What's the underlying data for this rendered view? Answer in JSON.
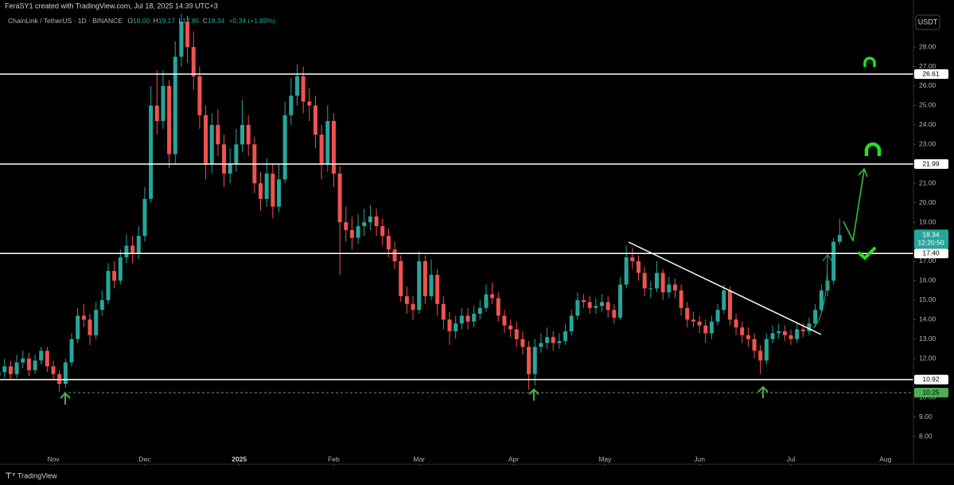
{
  "header": "FeraSY1 created with TradingView.com, Jul 18, 2025 14:39 UTC+3",
  "footer": "TradingView",
  "chart_data": {
    "type": "candlestick",
    "title": "ChainLink / TetherUS · 1D · BINANCE",
    "ohlc_legend": [
      {
        "key": "O",
        "value": "18.00"
      },
      {
        "key": "H",
        "value": "19.17"
      },
      {
        "key": "L",
        "value": "17.85"
      },
      {
        "key": "C",
        "value": "18.34"
      }
    ],
    "change": "+0.34 (+1.89%)",
    "currency": "USDT",
    "up_color": "#26a69a",
    "down_color": "#ef5350",
    "grid": false,
    "xlim": [
      -17.5,
      282.2
    ],
    "xticks": [
      {
        "value": 0,
        "label": "Nov"
      },
      {
        "value": 30,
        "label": "Dec"
      },
      {
        "value": 61,
        "label": "2025"
      },
      {
        "value": 92,
        "label": "Feb"
      },
      {
        "value": 120,
        "label": "Mar"
      },
      {
        "value": 151,
        "label": "Apr"
      },
      {
        "value": 181,
        "label": "May"
      },
      {
        "value": 212,
        "label": "Jun"
      },
      {
        "value": 242,
        "label": "Jul"
      },
      {
        "value": 273,
        "label": "Aug"
      }
    ],
    "ylim": [
      6.61,
      29.68
    ],
    "yticks": [
      {
        "value": 8,
        "label": "8.00"
      },
      {
        "value": 9,
        "label": "9.00"
      },
      {
        "value": 10,
        "label": "10.00"
      },
      {
        "value": 12,
        "label": "12.00"
      },
      {
        "value": 13,
        "label": "13.00"
      },
      {
        "value": 14,
        "label": "14.00"
      },
      {
        "value": 15,
        "label": "15.00"
      },
      {
        "value": 16,
        "label": "16.00"
      },
      {
        "value": 17,
        "label": "17.00"
      },
      {
        "value": 19,
        "label": "19.00"
      },
      {
        "value": 20,
        "label": "20.00"
      },
      {
        "value": 21,
        "label": "21.00"
      },
      {
        "value": 23,
        "label": "23.00"
      },
      {
        "value": 24,
        "label": "24.00"
      },
      {
        "value": 25,
        "label": "25.00"
      },
      {
        "value": 26,
        "label": "26.00"
      },
      {
        "value": 27,
        "label": "27.00"
      },
      {
        "value": 28,
        "label": "28.00"
      }
    ],
    "levels": [
      26.61,
      21.99,
      {
        "value": 17.4,
        "label": "17.40"
      },
      10.92
    ],
    "support_level": 10.25,
    "last_price": 18.34,
    "countdown": "12:20:50",
    "x": [
      -18,
      -16,
      -14,
      -12,
      -10,
      -8,
      -6,
      -4,
      -2,
      0,
      2,
      4,
      6,
      8,
      10,
      12,
      14,
      16,
      18,
      20,
      22,
      24,
      26,
      28,
      30,
      32,
      34,
      36,
      38,
      40,
      42,
      44,
      46,
      48,
      50,
      52,
      54,
      56,
      58,
      60,
      62,
      64,
      66,
      68,
      70,
      72,
      74,
      76,
      78,
      80,
      82,
      84,
      86,
      88,
      90,
      92,
      94,
      96,
      98,
      100,
      102,
      104,
      106,
      108,
      110,
      112,
      114,
      116,
      118,
      120,
      122,
      124,
      126,
      128,
      130,
      132,
      134,
      136,
      138,
      140,
      142,
      144,
      146,
      148,
      150,
      152,
      154,
      156,
      158,
      160,
      162,
      164,
      166,
      168,
      170,
      172,
      174,
      176,
      178,
      180,
      182,
      184,
      186,
      188,
      190,
      192,
      194,
      196,
      198,
      200,
      202,
      204,
      206,
      208,
      210,
      212,
      214,
      216,
      218,
      220,
      222,
      224,
      226,
      228,
      230,
      232,
      234,
      236,
      238,
      240,
      242,
      244,
      246,
      248,
      250,
      252,
      254,
      256,
      258
    ],
    "open": [
      11.1,
      11.3,
      11.6,
      11.2,
      11.8,
      12.0,
      11.4,
      11.9,
      12.4,
      11.6,
      11.2,
      10.7,
      11.8,
      13.0,
      14.2,
      14.0,
      13.2,
      14.5,
      15.0,
      16.5,
      16.0,
      17.2,
      17.8,
      17.4,
      18.3,
      20.2,
      25.0,
      24.2,
      26.0,
      22.5,
      27.5,
      29.3,
      28.0,
      26.5,
      24.5,
      22.0,
      24.0,
      23.0,
      21.5,
      22.0,
      23.0,
      24.0,
      23.0,
      21.0,
      20.2,
      21.5,
      19.8,
      21.2,
      24.5,
      25.5,
      26.5,
      25.2,
      25.0,
      23.5,
      22.0,
      24.2,
      21.5,
      19.0,
      18.6,
      18.2,
      18.8,
      19.0,
      19.3,
      18.8,
      18.3,
      17.6,
      17.0,
      15.2,
      14.8,
      14.5,
      17.0,
      15.2,
      16.3,
      14.8,
      14.0,
      13.4,
      13.8,
      14.2,
      13.9,
      14.3,
      14.6,
      15.3,
      15.1,
      14.2,
      13.7,
      13.5,
      13.0,
      12.6,
      11.2,
      12.6,
      12.8,
      13.1,
      12.8,
      12.9,
      13.4,
      14.2,
      15.0,
      14.9,
      14.6,
      14.7,
      14.9,
      14.5,
      14.1,
      15.8,
      17.2,
      17.0,
      16.4,
      15.6,
      15.6,
      16.4,
      15.4,
      15.8,
      15.5,
      14.6,
      14.0,
      13.9,
      13.7,
      13.3,
      13.9,
      14.5,
      15.5,
      14.0,
      13.6,
      13.2,
      13.0,
      12.4,
      11.9,
      13.0,
      13.3,
      13.4,
      13.2,
      13.0,
      13.5,
      13.4,
      13.8,
      14.5,
      15.5,
      16.0,
      18.0
    ],
    "high": [
      11.7,
      12.0,
      11.9,
      12.2,
      12.4,
      12.3,
      12.2,
      12.6,
      12.6,
      11.9,
      11.4,
      12.0,
      13.3,
      14.6,
      14.8,
      14.3,
      14.9,
      15.5,
      16.9,
      17.0,
      17.6,
      18.4,
      18.3,
      18.8,
      20.8,
      26.0,
      26.8,
      26.8,
      26.3,
      28.3,
      29.7,
      29.6,
      28.8,
      27.0,
      25.0,
      24.6,
      24.8,
      23.5,
      22.8,
      23.8,
      25.3,
      24.5,
      23.4,
      21.6,
      22.3,
      22.0,
      22.0,
      25.2,
      26.4,
      27.1,
      27.0,
      25.9,
      25.5,
      24.0,
      25.0,
      24.6,
      21.9,
      19.8,
      19.3,
      19.4,
      19.7,
      19.9,
      19.7,
      19.2,
      18.7,
      18.0,
      17.3,
      15.7,
      15.2,
      17.5,
      17.3,
      17.1,
      16.6,
      15.2,
      14.4,
      14.2,
      14.6,
      14.6,
      14.7,
      15.0,
      15.8,
      15.9,
      15.4,
      14.5,
      14.0,
      13.9,
      13.4,
      12.9,
      13.0,
      13.3,
      13.6,
      13.4,
      13.3,
      13.8,
      14.5,
      15.4,
      15.3,
      15.2,
      15.1,
      15.3,
      15.2,
      14.8,
      16.2,
      17.8,
      17.7,
      17.3,
      16.7,
      16.0,
      17.0,
      16.6,
      16.2,
      16.1,
      15.8,
      14.9,
      14.4,
      14.2,
      14.0,
      14.2,
      14.8,
      15.8,
      15.7,
      14.3,
      13.9,
      13.6,
      13.3,
      12.7,
      13.3,
      13.7,
      13.8,
      13.7,
      13.5,
      13.8,
      13.8,
      14.1,
      14.8,
      15.8,
      16.4,
      18.2,
      19.17
    ],
    "low": [
      10.8,
      11.0,
      10.9,
      11.0,
      11.5,
      11.1,
      11.2,
      11.7,
      11.3,
      10.9,
      10.3,
      10.5,
      11.6,
      12.8,
      13.6,
      12.7,
      13.0,
      14.2,
      14.8,
      15.6,
      15.8,
      16.9,
      16.9,
      17.1,
      18.0,
      20.0,
      23.5,
      23.8,
      21.8,
      22.0,
      27.0,
      27.2,
      25.8,
      23.8,
      21.2,
      21.5,
      22.4,
      20.8,
      21.0,
      21.6,
      22.6,
      22.4,
      20.5,
      19.6,
      19.8,
      19.2,
      19.5,
      21.0,
      24.0,
      25.0,
      24.6,
      24.2,
      22.8,
      21.2,
      21.6,
      20.8,
      16.3,
      18.0,
      17.6,
      17.9,
      18.3,
      18.6,
      18.3,
      17.8,
      17.2,
      16.6,
      14.9,
      14.3,
      14.0,
      14.3,
      14.8,
      15.0,
      14.2,
      13.5,
      12.7,
      13.0,
      13.5,
      13.5,
      13.6,
      14.0,
      14.4,
      14.8,
      13.9,
      13.3,
      13.1,
      12.6,
      12.2,
      10.4,
      10.6,
      12.3,
      12.5,
      12.4,
      12.5,
      12.7,
      13.2,
      14.0,
      14.6,
      14.3,
      14.3,
      14.4,
      14.1,
      13.8,
      14.0,
      15.6,
      16.6,
      16.0,
      15.2,
      15.1,
      15.4,
      15.0,
      15.1,
      15.1,
      14.2,
      13.6,
      13.6,
      13.3,
      12.8,
      13.0,
      13.7,
      14.3,
      13.7,
      13.2,
      12.8,
      12.6,
      12.0,
      11.2,
      11.7,
      12.8,
      13.0,
      12.9,
      12.7,
      12.8,
      13.1,
      13.2,
      13.6,
      14.3,
      15.2,
      15.8,
      17.85
    ],
    "close": [
      11.3,
      11.6,
      11.2,
      11.8,
      12.0,
      11.4,
      11.9,
      12.4,
      11.6,
      11.2,
      10.7,
      11.8,
      13.0,
      14.2,
      14.0,
      13.2,
      14.5,
      15.0,
      16.5,
      16.0,
      17.2,
      17.8,
      17.4,
      18.3,
      20.2,
      25.0,
      24.2,
      26.0,
      22.5,
      27.5,
      29.3,
      28.0,
      26.5,
      24.5,
      22.0,
      24.0,
      23.0,
      21.5,
      22.0,
      23.0,
      24.0,
      23.0,
      21.0,
      20.2,
      21.5,
      19.8,
      21.2,
      24.5,
      25.5,
      26.5,
      25.2,
      25.0,
      23.5,
      22.0,
      24.2,
      21.5,
      19.0,
      18.6,
      18.2,
      18.8,
      19.0,
      19.3,
      18.8,
      18.3,
      17.6,
      17.0,
      15.2,
      14.8,
      14.5,
      17.0,
      15.2,
      16.3,
      14.8,
      14.0,
      13.4,
      13.8,
      14.2,
      13.9,
      14.3,
      14.6,
      15.3,
      15.1,
      14.2,
      13.7,
      13.5,
      13.0,
      12.6,
      11.2,
      12.6,
      12.8,
      13.1,
      12.8,
      12.9,
      13.4,
      14.2,
      15.0,
      14.9,
      14.6,
      14.7,
      14.9,
      14.5,
      14.1,
      15.8,
      17.2,
      17.0,
      16.4,
      15.6,
      15.6,
      16.4,
      15.4,
      15.8,
      15.5,
      14.6,
      14.0,
      13.9,
      13.7,
      13.3,
      13.9,
      14.5,
      15.5,
      14.0,
      13.6,
      13.2,
      13.0,
      12.4,
      11.9,
      13.0,
      13.3,
      13.4,
      13.2,
      13.0,
      13.5,
      13.4,
      13.8,
      14.5,
      15.5,
      16.0,
      18.0,
      18.34
    ]
  }
}
